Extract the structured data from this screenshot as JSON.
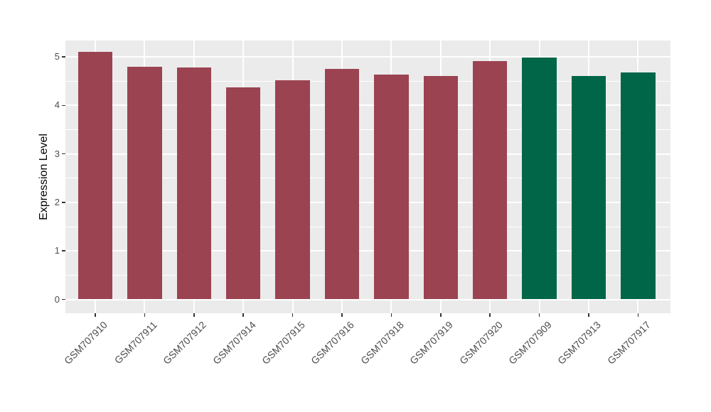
{
  "chart": {
    "y_axis_title": "Expression Level"
  },
  "chart_data": {
    "type": "bar",
    "title": "",
    "xlabel": "",
    "ylabel": "Expression Level",
    "categories": [
      "GSM707910",
      "GSM707911",
      "GSM707912",
      "GSM707914",
      "GSM707915",
      "GSM707916",
      "GSM707918",
      "GSM707919",
      "GSM707920",
      "GSM707909",
      "GSM707913",
      "GSM707917"
    ],
    "values": [
      5.1,
      4.8,
      4.78,
      4.37,
      4.52,
      4.75,
      4.63,
      4.6,
      4.91,
      4.99,
      4.6,
      4.68
    ],
    "groups": [
      "A",
      "A",
      "A",
      "A",
      "A",
      "A",
      "A",
      "A",
      "A",
      "B",
      "B",
      "B"
    ],
    "group_colors": {
      "A": "#9B4351",
      "B": "#016648"
    },
    "ylim": [
      -0.27,
      5.37
    ],
    "yticks": [
      0,
      1,
      2,
      3,
      4,
      5
    ],
    "ytick_labels": [
      "0",
      "1",
      "2",
      "3",
      "4",
      "5"
    ],
    "yticks_minor": [
      0.5,
      1.5,
      2.5,
      3.5,
      4.5
    ],
    "grid": true,
    "legend": false,
    "panel_background": "#EBEBEB",
    "grid_color": "#FFFFFF",
    "tick_color": "#333333",
    "axis_text_color": "#4D4D4D",
    "bar_width_ratio": 0.7
  }
}
